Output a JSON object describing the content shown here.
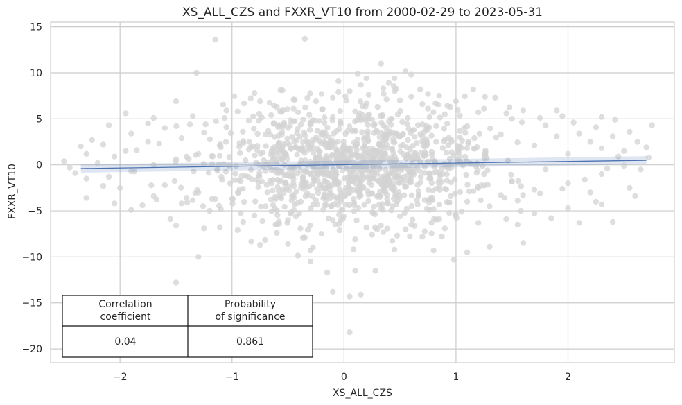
{
  "chart_data": {
    "type": "scatter",
    "title": "XS_ALL_CZS and FXXR_VT10 from 2000-02-29 to 2023-05-31",
    "xlabel": "XS_ALL_CZS",
    "ylabel": "FXXR_VT10",
    "xlim": [
      -2.62,
      2.95
    ],
    "ylim": [
      -21.5,
      15.5
    ],
    "xticks": [
      -2,
      -1,
      0,
      1,
      2
    ],
    "xtick_labels": [
      "−2",
      "−1",
      "0",
      "1",
      "2"
    ],
    "yticks": [
      15,
      10,
      5,
      0,
      -5,
      -10,
      -15,
      -20
    ],
    "ytick_labels": [
      "15",
      "10",
      "5",
      "0",
      "−5",
      "−10",
      "−15",
      "−20"
    ],
    "grid": true,
    "regression": {
      "x0": -2.35,
      "y0": -0.4,
      "x1": 2.7,
      "y1": 0.5,
      "ci_halfwidth": 0.45
    },
    "point_color": "#d3d3d3",
    "line_color": "#4c72b0",
    "table": {
      "col1_header_line1": "Correlation",
      "col1_header_line2": "coefficient",
      "col2_header_line1": "Probability",
      "col2_header_line2": "of significance",
      "col1_value": "0.04",
      "col2_value": "0.861"
    },
    "points": [
      [
        -1.15,
        13.6
      ],
      [
        -0.35,
        13.7
      ],
      [
        0.33,
        11.0
      ],
      [
        0.55,
        10.2
      ],
      [
        0.45,
        9.4
      ],
      [
        0.05,
        8.0
      ],
      [
        -0.1,
        7.3
      ],
      [
        0.22,
        7.6
      ],
      [
        -0.8,
        7.8
      ],
      [
        -1.5,
        6.9
      ],
      [
        0.68,
        8.2
      ],
      [
        0.85,
        7.5
      ],
      [
        1.35,
        7.3
      ],
      [
        1.6,
        5.9
      ],
      [
        1.95,
        5.3
      ],
      [
        2.42,
        4.9
      ],
      [
        2.75,
        4.3
      ],
      [
        2.62,
        2.5
      ],
      [
        2.5,
        1.5
      ],
      [
        2.72,
        0.8
      ],
      [
        2.65,
        -0.5
      ],
      [
        2.55,
        -2.5
      ],
      [
        2.2,
        -3.0
      ],
      [
        2.1,
        -6.3
      ],
      [
        2.4,
        -6.2
      ],
      [
        1.6,
        -8.5
      ],
      [
        1.3,
        -8.9
      ],
      [
        1.1,
        -9.5
      ],
      [
        0.98,
        -10.3
      ],
      [
        0.8,
        -9.3
      ],
      [
        0.28,
        -11.5
      ],
      [
        0.1,
        -11.5
      ],
      [
        -0.15,
        -11.7
      ],
      [
        -0.3,
        -10.5
      ],
      [
        -0.1,
        -13.8
      ],
      [
        0.05,
        -14.3
      ],
      [
        0.15,
        -14.1
      ],
      [
        0.05,
        -18.2
      ],
      [
        -1.3,
        -10.0
      ],
      [
        -1.5,
        -12.8
      ],
      [
        -1.55,
        -5.9
      ],
      [
        -1.8,
        -4.4
      ],
      [
        -2.3,
        -3.6
      ],
      [
        -2.05,
        -4.2
      ],
      [
        -1.9,
        -4.9
      ],
      [
        -2.5,
        0.4
      ],
      [
        -2.35,
        2.0
      ],
      [
        -2.25,
        2.7
      ],
      [
        -2.4,
        -0.9
      ],
      [
        -1.95,
        1.5
      ],
      [
        -1.75,
        2.5
      ],
      [
        -1.75,
        4.5
      ],
      [
        -1.95,
        5.6
      ],
      [
        -0.5,
        -8.6
      ],
      [
        -0.75,
        -8.7
      ],
      [
        -1.45,
        -4.2
      ],
      [
        -1.2,
        -5.0
      ],
      [
        -0.9,
        -6.2
      ],
      [
        -0.6,
        -6.5
      ],
      [
        -0.3,
        -9.3
      ],
      [
        0.45,
        -9.2
      ],
      [
        0.7,
        -7.8
      ],
      [
        1.55,
        -6.5
      ],
      [
        1.85,
        -5.8
      ],
      [
        2.3,
        -4.3
      ],
      [
        1.2,
        -2.5
      ],
      [
        1.5,
        -1.8
      ],
      [
        1.8,
        -0.5
      ],
      [
        2.0,
        1.2
      ],
      [
        2.2,
        2.5
      ],
      [
        1.9,
        3.1
      ],
      [
        1.7,
        2.1
      ],
      [
        1.4,
        3.3
      ],
      [
        1.1,
        4.2
      ],
      [
        0.9,
        5.5
      ],
      [
        0.7,
        6.6
      ],
      [
        0.5,
        7.0
      ],
      [
        0.3,
        6.3
      ],
      [
        0.1,
        5.8
      ],
      [
        -0.1,
        5.2
      ],
      [
        -0.3,
        4.6
      ],
      [
        -0.5,
        4.0
      ],
      [
        -0.7,
        3.3
      ],
      [
        -0.9,
        2.6
      ],
      [
        -1.1,
        1.9
      ],
      [
        -1.3,
        1.2
      ],
      [
        -1.5,
        0.6
      ],
      [
        -1.7,
        0.0
      ],
      [
        -1.9,
        -0.7
      ],
      [
        -2.1,
        -1.3
      ],
      [
        -1.6,
        -2.2
      ],
      [
        -1.3,
        -3.0
      ],
      [
        -1.0,
        -3.7
      ],
      [
        -0.7,
        -4.5
      ],
      [
        -0.4,
        -5.3
      ],
      [
        -0.1,
        -6.0
      ],
      [
        0.2,
        -6.8
      ],
      [
        0.5,
        -5.6
      ],
      [
        0.8,
        -4.8
      ],
      [
        1.1,
        -4.0
      ],
      [
        1.4,
        -3.3
      ],
      [
        1.7,
        -2.7
      ],
      [
        2.0,
        -2.0
      ],
      [
        2.3,
        -1.0
      ],
      [
        2.5,
        -0.1
      ],
      [
        2.3,
        1.8
      ],
      [
        2.1,
        3.4
      ],
      [
        1.8,
        4.3
      ],
      [
        1.5,
        5.0
      ],
      [
        1.2,
        5.7
      ],
      [
        0.95,
        6.3
      ],
      [
        0.6,
        7.4
      ],
      [
        0.35,
        8.3
      ],
      [
        0.15,
        8.7
      ],
      [
        -0.05,
        7.9
      ],
      [
        -0.25,
        6.9
      ],
      [
        -0.45,
        6.1
      ],
      [
        -0.65,
        5.4
      ],
      [
        -0.85,
        4.8
      ],
      [
        -1.05,
        4.1
      ],
      [
        -1.25,
        3.5
      ],
      [
        -1.45,
        2.9
      ],
      [
        -1.65,
        2.3
      ],
      [
        -1.85,
        1.6
      ],
      [
        -2.05,
        0.9
      ],
      [
        -2.2,
        0.2
      ],
      [
        -2.0,
        -2.5
      ],
      [
        -1.7,
        -3.4
      ],
      [
        -1.4,
        -4.1
      ],
      [
        -1.1,
        -4.8
      ],
      [
        -0.8,
        -5.5
      ],
      [
        -0.5,
        -6.0
      ],
      [
        -0.2,
        -7.5
      ],
      [
        0.1,
        -8.1
      ],
      [
        0.35,
        -7.3
      ],
      [
        0.6,
        -6.5
      ],
      [
        0.85,
        -5.9
      ],
      [
        1.05,
        -5.1
      ],
      [
        1.3,
        -4.5
      ],
      [
        1.55,
        -3.9
      ],
      [
        1.75,
        -3.1
      ],
      [
        1.95,
        -2.6
      ],
      [
        2.15,
        -1.6
      ],
      [
        2.35,
        -0.4
      ],
      [
        2.45,
        0.9
      ],
      [
        2.4,
        3.1
      ],
      [
        2.25,
        4.1
      ],
      [
        2.05,
        4.6
      ],
      [
        1.75,
        5.1
      ],
      [
        1.45,
        5.6
      ],
      [
        1.25,
        6.1
      ],
      [
        1.0,
        6.9
      ],
      [
        0.75,
        7.7
      ],
      [
        0.4,
        8.9
      ],
      [
        -0.2,
        7.7
      ],
      [
        -0.45,
        7.1
      ],
      [
        -0.6,
        6.3
      ],
      [
        -0.95,
        5.8
      ],
      [
        -1.35,
        5.3
      ],
      [
        -1.6,
        4.0
      ],
      [
        -1.9,
        3.4
      ],
      [
        -2.15,
        2.2
      ],
      [
        -2.3,
        1.2
      ],
      [
        -2.45,
        -0.3
      ],
      [
        -2.3,
        -1.5
      ],
      [
        -2.15,
        -2.3
      ],
      [
        -1.5,
        -6.6
      ],
      [
        -1.25,
        -6.9
      ],
      [
        -0.95,
        -7.1
      ],
      [
        -0.6,
        -7.4
      ],
      [
        -0.35,
        -7.9
      ],
      [
        0.25,
        -7.6
      ],
      [
        0.55,
        -7.0
      ],
      [
        0.9,
        -6.9
      ],
      [
        1.2,
        -6.3
      ],
      [
        1.45,
        -5.9
      ],
      [
        1.7,
        -5.3
      ],
      [
        2.0,
        -4.7
      ],
      [
        2.25,
        -4.0
      ],
      [
        2.6,
        -3.4
      ],
      [
        2.7,
        1.9
      ],
      [
        2.55,
        3.6
      ],
      [
        2.3,
        5.2
      ],
      [
        1.9,
        5.9
      ],
      [
        0.6,
        9.8
      ],
      [
        0.2,
        9.4
      ],
      [
        -0.05,
        9.1
      ],
      [
        -0.55,
        8.1
      ],
      [
        -0.75,
        6.9
      ],
      [
        -1.05,
        5.9
      ],
      [
        -1.7,
        5.1
      ],
      [
        -2.1,
        4.3
      ]
    ]
  }
}
